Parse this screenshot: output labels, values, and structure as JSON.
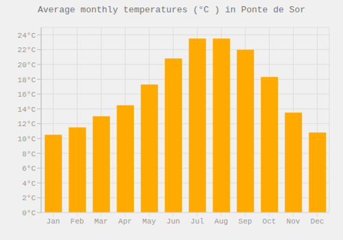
{
  "chart_data": {
    "type": "bar",
    "title": "Average monthly temperatures (°C ) in Ponte de Sor",
    "categories": [
      "Jan",
      "Feb",
      "Mar",
      "Apr",
      "May",
      "Jun",
      "Jul",
      "Aug",
      "Sep",
      "Oct",
      "Nov",
      "Dec"
    ],
    "values": [
      10.5,
      11.5,
      13.0,
      14.5,
      17.3,
      20.8,
      23.5,
      23.5,
      22.0,
      18.3,
      13.5,
      10.8
    ],
    "color": "#FFAA00",
    "ylim": [
      0,
      25
    ],
    "yticks": [
      {
        "value": 0,
        "label": "0°C"
      },
      {
        "value": 2,
        "label": "2°C"
      },
      {
        "value": 4,
        "label": "4°C"
      },
      {
        "value": 6,
        "label": "6°C"
      },
      {
        "value": 8,
        "label": "8°C"
      },
      {
        "value": 10,
        "label": "10°C"
      },
      {
        "value": 12,
        "label": "12°C"
      },
      {
        "value": 14,
        "label": "14°C"
      },
      {
        "value": 16,
        "label": "16°C"
      },
      {
        "value": 18,
        "label": "18°C"
      },
      {
        "value": 20,
        "label": "20°C"
      },
      {
        "value": 22,
        "label": "22°C"
      },
      {
        "value": 24,
        "label": "24°C"
      }
    ],
    "grid": true
  }
}
